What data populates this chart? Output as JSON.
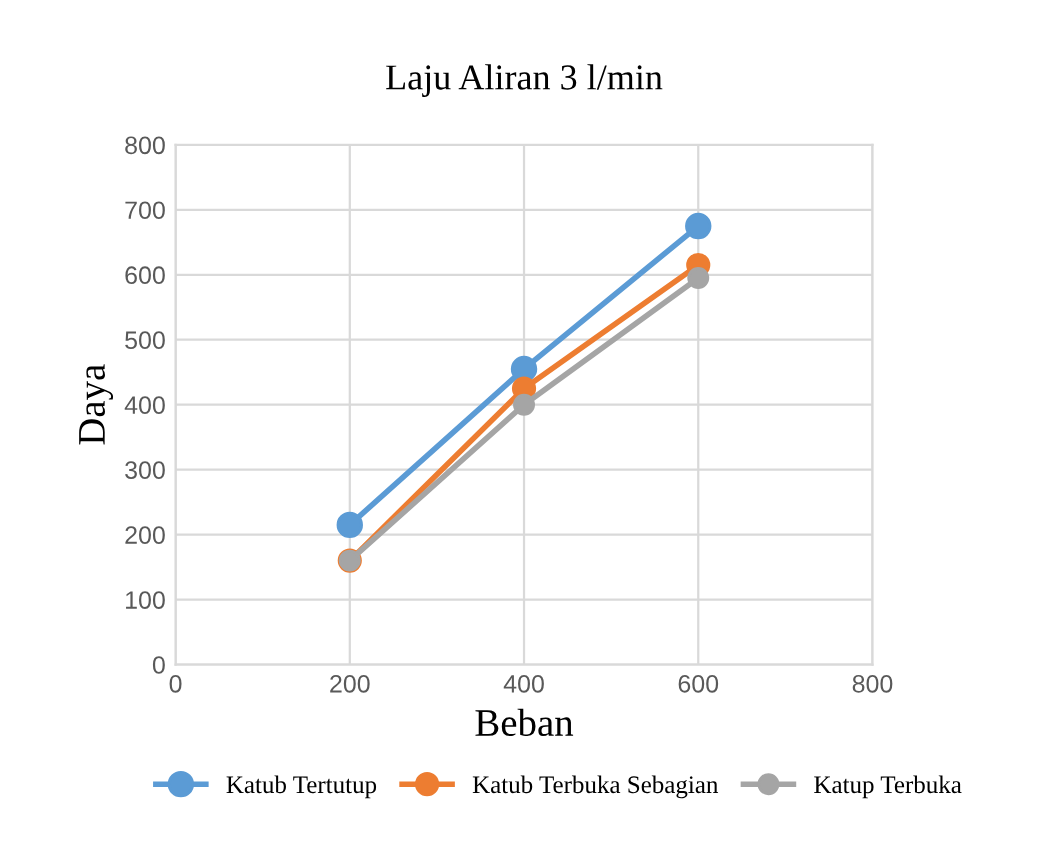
{
  "chart_data": {
    "type": "line",
    "title": "Laju Aliran 3 l/min",
    "xlabel": "Beban",
    "ylabel": "Daya",
    "x": [
      200,
      400,
      600
    ],
    "series": [
      {
        "name": "Katub Tertutup",
        "color": "#5b9bd5",
        "values": [
          215,
          455,
          675
        ]
      },
      {
        "name": "Katub Terbuka Sebagian",
        "color": "#ed7d31",
        "values": [
          160,
          425,
          615
        ]
      },
      {
        "name": "Katup Terbuka",
        "color": "#a5a5a5",
        "values": [
          160,
          400,
          595
        ]
      }
    ],
    "xlim": [
      0,
      800
    ],
    "xticks": [
      0,
      200,
      400,
      600,
      800
    ],
    "ylim": [
      0,
      800
    ],
    "yticks": [
      0,
      100,
      200,
      300,
      400,
      500,
      600,
      700,
      800
    ],
    "grid": true,
    "legend": "bottom",
    "marker": "circle",
    "line_style": "solid"
  }
}
